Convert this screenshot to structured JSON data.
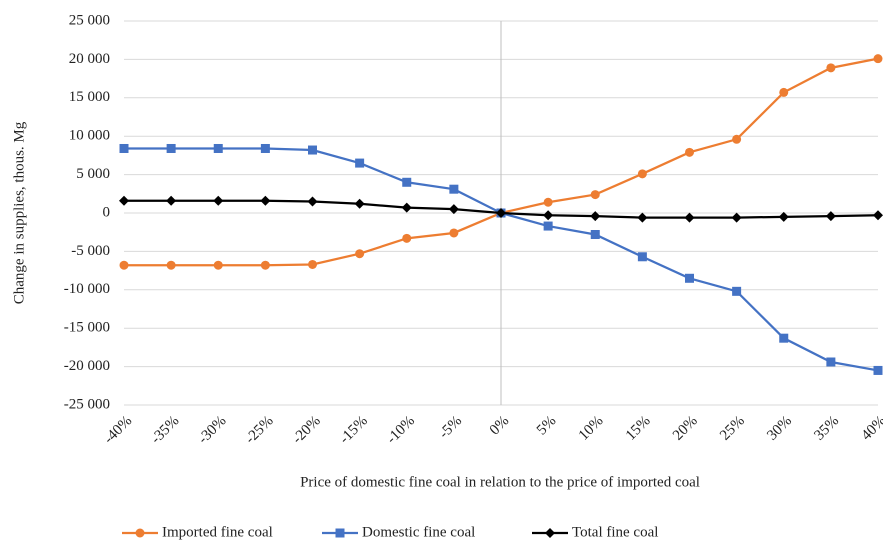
{
  "chart_data": {
    "type": "line",
    "x_label": "Price of domestic fine coal in relation to the price of imported coal",
    "y_label": "Change in supplies, thous. Mg",
    "categories": [
      "-40%",
      "-35%",
      "-30%",
      "-25%",
      "-20%",
      "-15%",
      "-10%",
      "-5%",
      "0%",
      "5%",
      "10%",
      "15%",
      "20%",
      "25%",
      "30%",
      "35%",
      "40%"
    ],
    "series": [
      {
        "name": "Imported fine coal",
        "color": "#ed7d31",
        "marker": "circle",
        "values": [
          -6800,
          -6800,
          -6800,
          -6800,
          -6700,
          -5300,
          -3300,
          -2600,
          0,
          1400,
          2400,
          5100,
          7900,
          9600,
          15700,
          18900,
          20100
        ]
      },
      {
        "name": "Domestic fine coal",
        "color": "#4472c4",
        "marker": "square",
        "values": [
          8400,
          8400,
          8400,
          8400,
          8200,
          6500,
          4000,
          3100,
          0,
          -1700,
          -2800,
          -5700,
          -8500,
          -10200,
          -16300,
          -19400,
          -20500
        ]
      },
      {
        "name": "Total fine coal",
        "color": "#000000",
        "marker": "diamond",
        "values": [
          1600,
          1600,
          1600,
          1600,
          1500,
          1200,
          700,
          500,
          0,
          -300,
          -400,
          -600,
          -600,
          -600,
          -500,
          -400,
          -300
        ]
      }
    ],
    "ylim": [
      -25000,
      25000
    ],
    "yticks": [
      {
        "value": -25000,
        "label": "-25 000"
      },
      {
        "value": -20000,
        "label": "-20 000"
      },
      {
        "value": -15000,
        "label": "-15 000"
      },
      {
        "value": -10000,
        "label": "-10 000"
      },
      {
        "value": -5000,
        "label": "-5 000"
      },
      0,
      {
        "value": 5000,
        "label": "5 000"
      },
      {
        "value": 10000,
        "label": "10 000"
      },
      {
        "value": 15000,
        "label": "15 000"
      },
      {
        "value": 20000,
        "label": "20 000"
      },
      {
        "value": 25000,
        "label": "25 000"
      }
    ],
    "grid": true,
    "legend": "bottom"
  }
}
